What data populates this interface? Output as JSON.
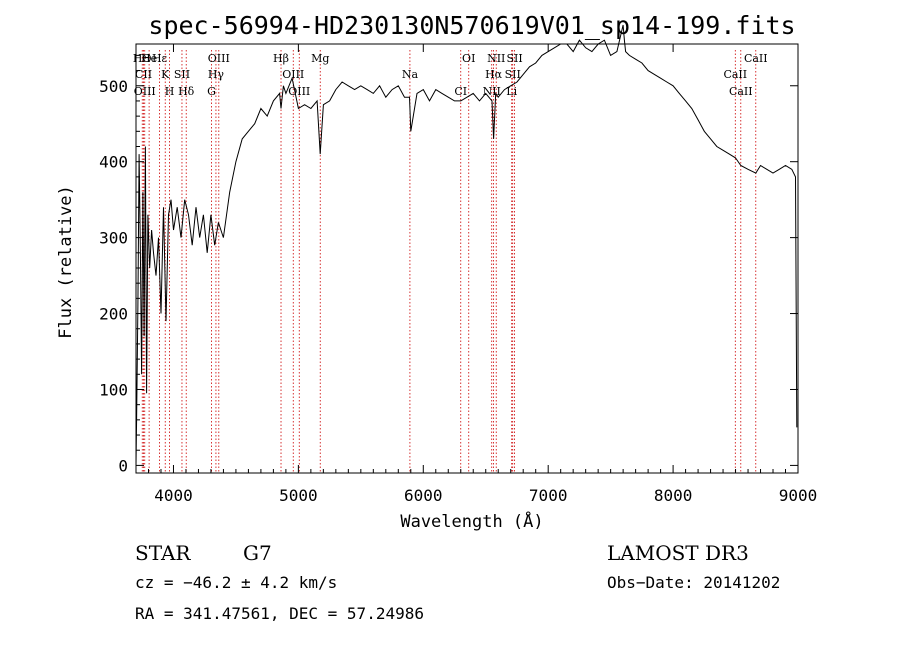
{
  "chart_data": {
    "type": "line",
    "title": "spec-56994-HD230130N570619V01_sp14-199.fits",
    "xlabel": "Wavelength (Å)",
    "ylabel": "Flux (relative)",
    "xlim": [
      3700,
      9000
    ],
    "ylim": [
      -10,
      555
    ],
    "xticks": [
      4000,
      5000,
      6000,
      7000,
      8000,
      9000
    ],
    "yticks": [
      0,
      100,
      200,
      300,
      400,
      500
    ],
    "grid": false,
    "series": [
      {
        "name": "spectrum",
        "x": [
          3700,
          3705,
          3715,
          3725,
          3735,
          3745,
          3755,
          3765,
          3775,
          3785,
          3795,
          3810,
          3825,
          3840,
          3860,
          3880,
          3900,
          3920,
          3940,
          3960,
          3980,
          4000,
          4030,
          4060,
          4090,
          4120,
          4150,
          4180,
          4210,
          4240,
          4270,
          4300,
          4330,
          4360,
          4400,
          4450,
          4500,
          4550,
          4600,
          4650,
          4700,
          4750,
          4800,
          4850,
          4861,
          4880,
          4900,
          4950,
          5000,
          5050,
          5100,
          5150,
          5175,
          5200,
          5250,
          5300,
          5350,
          5400,
          5450,
          5500,
          5550,
          5600,
          5650,
          5700,
          5750,
          5800,
          5850,
          5890,
          5900,
          5950,
          6000,
          6050,
          6100,
          6150,
          6200,
          6250,
          6300,
          6350,
          6400,
          6450,
          6500,
          6550,
          6563,
          6580,
          6600,
          6650,
          6700,
          6750,
          6800,
          6850,
          6900,
          6950,
          7000,
          7050,
          7100,
          7150,
          7200,
          7250,
          7300,
          7350,
          7400,
          7450,
          7500,
          7550,
          7600,
          7610,
          7620,
          7650,
          7700,
          7750,
          7800,
          7850,
          7900,
          7950,
          8000,
          8050,
          8100,
          8150,
          8200,
          8250,
          8300,
          8350,
          8400,
          8450,
          8500,
          8542,
          8600,
          8662,
          8700,
          8750,
          8800,
          8850,
          8900,
          8950,
          8980,
          8990
        ],
        "values": [
          0,
          60,
          210,
          410,
          280,
          120,
          360,
          170,
          420,
          95,
          330,
          260,
          310,
          280,
          250,
          300,
          200,
          340,
          190,
          330,
          350,
          310,
          340,
          300,
          350,
          330,
          290,
          340,
          300,
          330,
          280,
          330,
          290,
          320,
          300,
          360,
          400,
          430,
          440,
          450,
          470,
          460,
          480,
          490,
          470,
          500,
          490,
          510,
          470,
          475,
          470,
          480,
          410,
          475,
          480,
          495,
          505,
          500,
          495,
          500,
          495,
          490,
          500,
          485,
          495,
          500,
          485,
          485,
          440,
          490,
          495,
          480,
          495,
          490,
          485,
          480,
          480,
          485,
          490,
          480,
          490,
          480,
          430,
          490,
          485,
          495,
          500,
          505,
          515,
          525,
          530,
          540,
          545,
          550,
          555,
          555,
          545,
          560,
          550,
          545,
          555,
          560,
          540,
          545,
          580,
          560,
          545,
          540,
          535,
          530,
          520,
          515,
          510,
          505,
          500,
          490,
          480,
          470,
          455,
          440,
          430,
          420,
          415,
          410,
          405,
          395,
          390,
          385,
          395,
          390,
          385,
          390,
          395,
          390,
          380,
          50
        ]
      }
    ],
    "line_markers": [
      {
        "label": "HΘ",
        "wl": 3750
      },
      {
        "label": "CII",
        "wl": 3760
      },
      {
        "label": "OIII",
        "wl": 3770
      },
      {
        "label": "He",
        "wl": 3805
      },
      {
        "label": "K",
        "wl": 3934
      },
      {
        "label": "H",
        "wl": 3969
      },
      {
        "label": "Hε",
        "wl": 3889
      },
      {
        "label": "SII",
        "wl": 4068
      },
      {
        "label": "Hδ",
        "wl": 4102
      },
      {
        "label": "OIII",
        "wl": 4363
      },
      {
        "label": "Hγ",
        "wl": 4340
      },
      {
        "label": "G",
        "wl": 4305
      },
      {
        "label": "Hβ",
        "wl": 4861
      },
      {
        "label": "OIII",
        "wl": 4959
      },
      {
        "label": "OIII",
        "wl": 5007
      },
      {
        "label": "Mg",
        "wl": 5175
      },
      {
        "label": "Na",
        "wl": 5893
      },
      {
        "label": "CI",
        "wl": 6300
      },
      {
        "label": "OI",
        "wl": 6364
      },
      {
        "label": "Hα",
        "wl": 6563
      },
      {
        "label": "NII",
        "wl": 6548
      },
      {
        "label": "NII",
        "wl": 6584
      },
      {
        "label": "SII",
        "wl": 6716
      },
      {
        "label": "Li",
        "wl": 6708
      },
      {
        "label": "SII",
        "wl": 6731
      },
      {
        "label": "CaII",
        "wl": 8498
      },
      {
        "label": "CaII",
        "wl": 8542
      },
      {
        "label": "CaII",
        "wl": 8662
      }
    ]
  },
  "footer": {
    "object_class": "STAR",
    "subclass": "G7",
    "survey": "LAMOST DR3",
    "redshift": "cz = −46.2 ± 4.2 km/s",
    "obs_date": "Obs−Date: 20141202",
    "coords": "RA = 341.47561, DEC =  57.24986"
  },
  "colors": {
    "line": "#000000",
    "marker": "#cc0000",
    "background": "#ffffff"
  }
}
